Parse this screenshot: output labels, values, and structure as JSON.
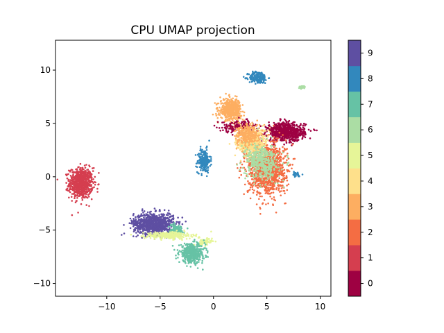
{
  "chart_data": {
    "type": "scatter",
    "title": "CPU UMAP projection",
    "xlabel": "",
    "ylabel": "",
    "xlim": [
      -14.8,
      11.0
    ],
    "ylim": [
      -11.2,
      12.8
    ],
    "xticks": [
      -10,
      -5,
      0,
      5,
      10
    ],
    "yticks": [
      -10,
      -5,
      0,
      5,
      10
    ],
    "grid": false,
    "colormap": "Spectral",
    "colorbar": {
      "ticks": [
        0,
        1,
        2,
        3,
        4,
        5,
        6,
        7,
        8,
        9
      ],
      "colors": [
        "#9e0142",
        "#d53e4f",
        "#f46d43",
        "#fdae61",
        "#fee08b",
        "#e6f598",
        "#abdda4",
        "#66c2a5",
        "#3288bd",
        "#5e4fa2"
      ]
    },
    "clusters": [
      {
        "label": 1,
        "center": [
          -12.4,
          -0.6
        ],
        "spread": [
          1.0,
          1.3
        ],
        "n": 700
      },
      {
        "label": 8,
        "center": [
          -0.9,
          1.5
        ],
        "spread": [
          0.55,
          1.0
        ],
        "n": 220
      },
      {
        "label": 8,
        "center": [
          4.2,
          9.3
        ],
        "spread": [
          0.8,
          0.5
        ],
        "n": 200
      },
      {
        "label": 6,
        "center": [
          8.3,
          8.4
        ],
        "spread": [
          0.3,
          0.15
        ],
        "n": 20
      },
      {
        "label": 9,
        "center": [
          -5.6,
          -4.4
        ],
        "spread": [
          1.7,
          0.9
        ],
        "n": 900
      },
      {
        "label": 7,
        "center": [
          -3.5,
          -5.0
        ],
        "spread": [
          0.7,
          0.5
        ],
        "n": 120
      },
      {
        "label": 5,
        "center": [
          -4.2,
          -5.5
        ],
        "spread": [
          2.0,
          0.3
        ],
        "n": 300
      },
      {
        "label": 5,
        "center": [
          -0.8,
          -6.1
        ],
        "spread": [
          0.6,
          0.3
        ],
        "n": 80
      },
      {
        "label": 7,
        "center": [
          -2.0,
          -7.2
        ],
        "spread": [
          1.1,
          0.8
        ],
        "n": 450
      },
      {
        "label": 3,
        "center": [
          1.6,
          6.3
        ],
        "spread": [
          0.9,
          0.9
        ],
        "n": 500
      },
      {
        "label": 0,
        "center": [
          6.8,
          4.2
        ],
        "spread": [
          1.6,
          0.8
        ],
        "n": 700
      },
      {
        "label": 0,
        "center": [
          2.5,
          4.7
        ],
        "spread": [
          1.5,
          0.5
        ],
        "n": 200
      },
      {
        "label": 2,
        "center": [
          5.0,
          0.8
        ],
        "spread": [
          1.6,
          2.2
        ],
        "n": 1200
      },
      {
        "label": 4,
        "center": [
          3.6,
          3.2
        ],
        "spread": [
          1.3,
          1.2
        ],
        "n": 500
      },
      {
        "label": 6,
        "center": [
          4.5,
          1.4
        ],
        "spread": [
          1.4,
          1.5
        ],
        "n": 450
      },
      {
        "label": 3,
        "center": [
          3.2,
          3.9
        ],
        "spread": [
          1.0,
          0.9
        ],
        "n": 300
      },
      {
        "label": 8,
        "center": [
          7.8,
          0.2
        ],
        "spread": [
          0.3,
          0.25
        ],
        "n": 30
      }
    ]
  }
}
